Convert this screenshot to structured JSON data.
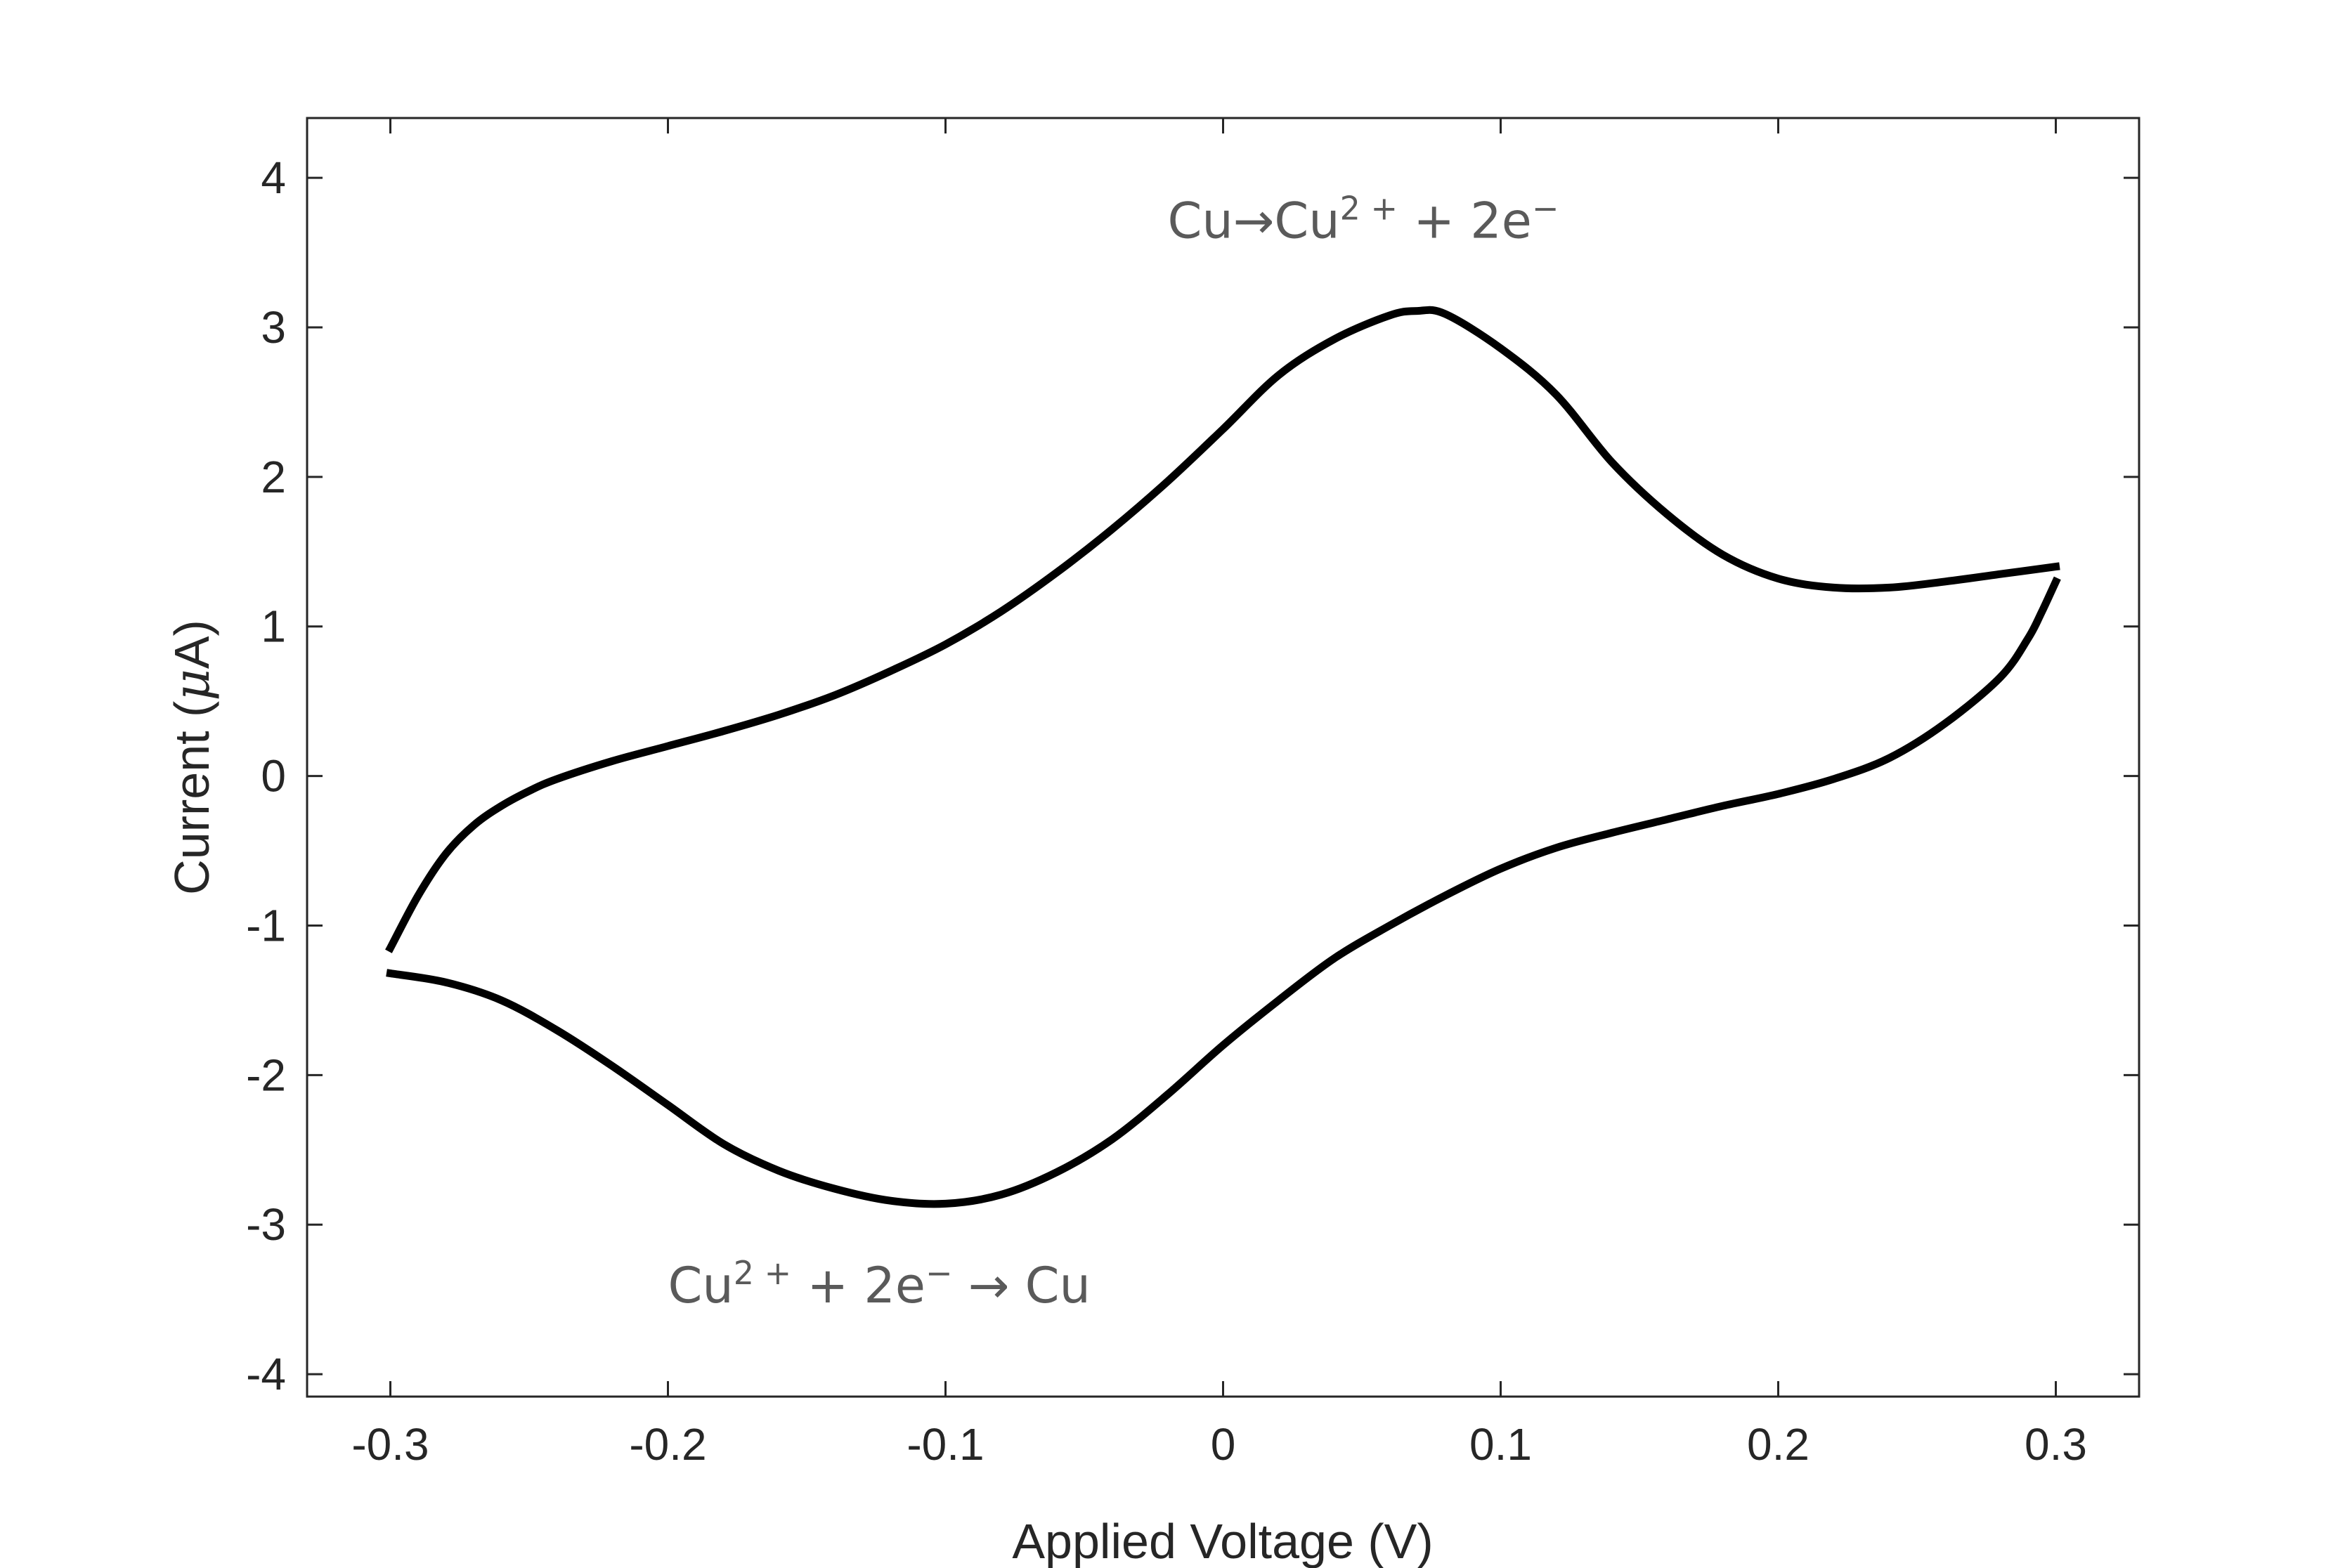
{
  "chart_data": {
    "type": "line",
    "title": "",
    "xlabel": "Applied Voltage (V)",
    "ylabel_prefix": "Current (",
    "ylabel_mu": "μ",
    "ylabel_suffix": "A)",
    "xlim": [
      -0.33,
      0.33
    ],
    "ylim": [
      -4.15,
      4.4
    ],
    "xticks": [
      -0.3,
      -0.2,
      -0.1,
      0,
      0.1,
      0.2,
      0.3
    ],
    "xtick_labels": [
      "-0.3",
      "-0.2",
      "-0.1",
      "0",
      "0.1",
      "0.2",
      "0.3"
    ],
    "yticks": [
      -4,
      -3,
      -2,
      -1,
      0,
      1,
      2,
      3,
      4
    ],
    "ytick_labels": [
      "-4",
      "-3",
      "-2",
      "-1",
      "0",
      "1",
      "2",
      "3",
      "4"
    ],
    "grid": false,
    "line_color": "#000000",
    "series": [
      {
        "forward_sweep": {
          "x": [
            -0.3,
            -0.29,
            -0.28,
            -0.27,
            -0.26,
            -0.25,
            -0.24,
            -0.22,
            -0.2,
            -0.18,
            -0.16,
            -0.14,
            -0.12,
            -0.1,
            -0.08,
            -0.06,
            -0.04,
            -0.02,
            0.0,
            0.02,
            0.04,
            0.06,
            0.07,
            0.08,
            0.1,
            0.12,
            0.14,
            0.16,
            0.18,
            0.2,
            0.22,
            0.24,
            0.26,
            0.28,
            0.3
          ],
          "y": [
            -1.15,
            -0.8,
            -0.52,
            -0.33,
            -0.2,
            -0.1,
            -0.02,
            0.1,
            0.2,
            0.3,
            0.41,
            0.54,
            0.7,
            0.88,
            1.1,
            1.36,
            1.65,
            1.97,
            2.32,
            2.68,
            2.92,
            3.08,
            3.11,
            3.09,
            2.86,
            2.55,
            2.1,
            1.75,
            1.48,
            1.32,
            1.26,
            1.26,
            1.3,
            1.35,
            1.4
          ]
        },
        "reverse_sweep": {
          "x": [
            0.3,
            0.295,
            0.29,
            0.28,
            0.26,
            0.24,
            0.22,
            0.2,
            0.18,
            0.16,
            0.14,
            0.12,
            0.1,
            0.08,
            0.06,
            0.04,
            0.02,
            0.0,
            -0.02,
            -0.04,
            -0.06,
            -0.08,
            -0.1,
            -0.12,
            -0.14,
            -0.16,
            -0.18,
            -0.2,
            -0.22,
            -0.24,
            -0.26,
            -0.28,
            -0.3
          ],
          "y": [
            1.3,
            1.1,
            0.92,
            0.66,
            0.35,
            0.12,
            -0.02,
            -0.12,
            -0.2,
            -0.29,
            -0.38,
            -0.48,
            -0.62,
            -0.8,
            -1.0,
            -1.22,
            -1.5,
            -1.8,
            -2.13,
            -2.43,
            -2.65,
            -2.8,
            -2.86,
            -2.84,
            -2.76,
            -2.64,
            -2.46,
            -2.2,
            -1.94,
            -1.7,
            -1.5,
            -1.38,
            -1.32
          ]
        }
      }
    ],
    "annotations": [
      {
        "anchor_x": -0.02,
        "anchor_y": 3.6,
        "parts": [
          {
            "text": "Cu",
            "sup": false
          },
          {
            "text": "→",
            "sup": false
          },
          {
            "text": "Cu",
            "sup": false
          },
          {
            "text": "2 +",
            "sup": true
          },
          {
            "text": " + 2e",
            "sup": false
          },
          {
            "text": "−",
            "sup": true
          }
        ]
      },
      {
        "anchor_x": -0.2,
        "anchor_y": -3.52,
        "parts": [
          {
            "text": "Cu",
            "sup": false
          },
          {
            "text": "2 +",
            "sup": true
          },
          {
            "text": " + 2e",
            "sup": false
          },
          {
            "text": "−",
            "sup": true
          },
          {
            "text": " → Cu",
            "sup": false
          }
        ]
      }
    ]
  }
}
